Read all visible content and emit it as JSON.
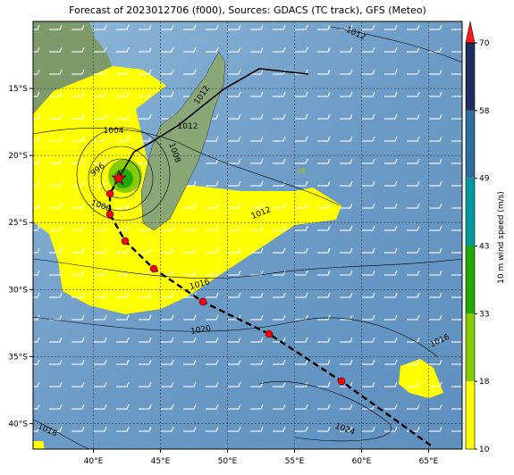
{
  "title": "Forecast of 2023012706 (f000), Sources: GDACS (TC track), GFS (Meteo)",
  "map": {
    "xlim": [
      35.5,
      67.5
    ],
    "ylim": [
      -41.9,
      -10
    ],
    "lon_ticks": [
      {
        "value": 40,
        "label": "40°E"
      },
      {
        "value": 45,
        "label": "45°E"
      },
      {
        "value": 50,
        "label": "50°E"
      },
      {
        "value": 55,
        "label": "55°E"
      },
      {
        "value": 60,
        "label": "60°E"
      },
      {
        "value": 65,
        "label": "65°E"
      }
    ],
    "lat_ticks": [
      {
        "value": -15,
        "label": "15°S"
      },
      {
        "value": -20,
        "label": "20°S"
      },
      {
        "value": -25,
        "label": "25°S"
      },
      {
        "value": -30,
        "label": "30°S"
      },
      {
        "value": -35,
        "label": "35°S"
      },
      {
        "value": -40,
        "label": "40°S"
      }
    ],
    "isobar_labels": [
      1012,
      1012,
      1012,
      1004,
      996,
      1008,
      1000,
      1012,
      1016,
      1020,
      1016,
      1024,
      1016
    ]
  },
  "colorbar": {
    "label": "10 m wind speed (m/s)",
    "bounds": [
      10,
      18,
      33,
      43,
      49,
      58,
      70
    ],
    "colors": [
      "#ffff00",
      "#88cc00",
      "#22a800",
      "#009a9a",
      "#2e6e9e",
      "#1c2d5e"
    ],
    "extend_color": "#ff1a1a"
  }
}
